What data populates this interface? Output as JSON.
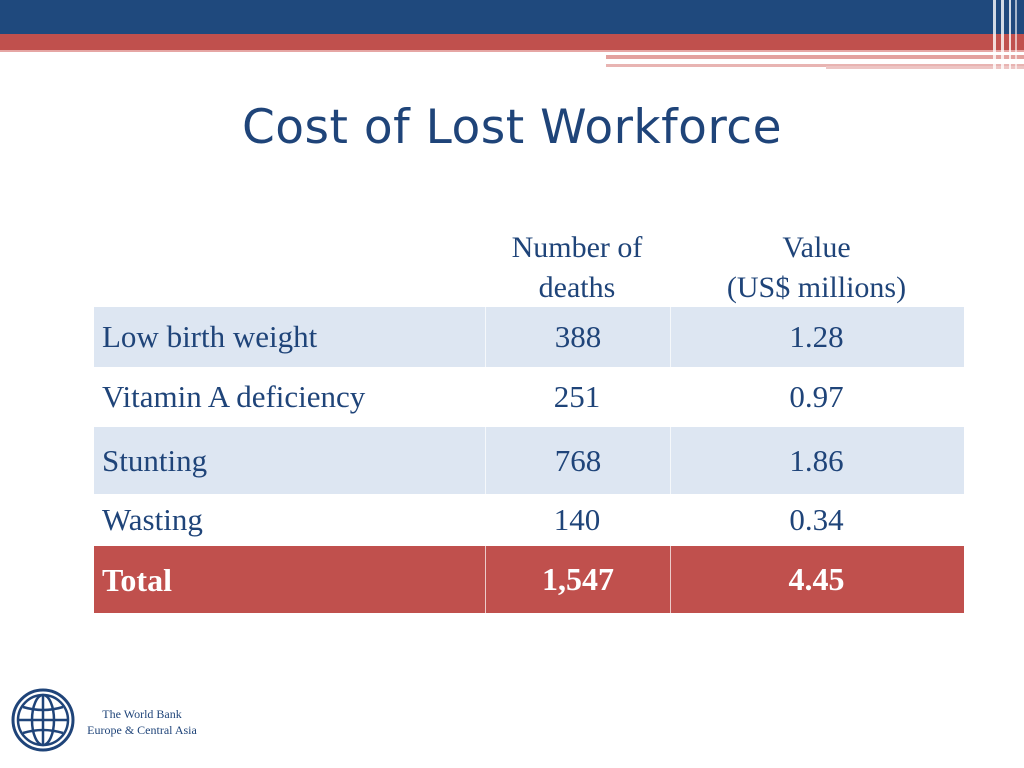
{
  "slide": {
    "title": "Cost of Lost Workforce"
  },
  "table": {
    "headers": {
      "deaths": [
        "Number of",
        "deaths"
      ],
      "value": [
        "Value",
        "(US$ millions)"
      ]
    },
    "rows": [
      {
        "label": "Low birth weight",
        "deaths": "388",
        "value": "1.28"
      },
      {
        "label": "Vitamin A deficiency",
        "deaths": "251",
        "value": "0.97"
      },
      {
        "label": "Stunting",
        "deaths": "768",
        "value": "1.86"
      },
      {
        "label": "Wasting",
        "deaths": "140",
        "value": "0.34"
      }
    ],
    "total": {
      "label": "Total",
      "deaths": "1,547",
      "value": "4.45"
    }
  },
  "footer": {
    "line1": "The World Bank",
    "line2": "Europe & Central Asia"
  },
  "colors": {
    "title": "#1f4479",
    "header_band": "#1f497d",
    "accent_red": "#c0504d",
    "row_shade": "#dde6f2"
  },
  "icons": {
    "logo": "world-bank-globe-icon"
  }
}
